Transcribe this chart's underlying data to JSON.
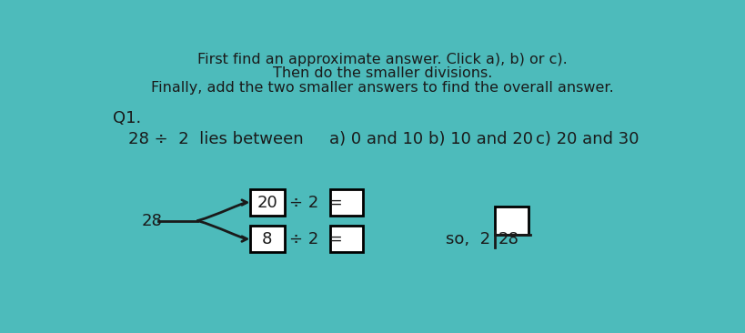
{
  "bg_color": "#4DBBBB",
  "text_color": "#1a1a1a",
  "title_lines": [
    "First find an approximate answer. Click a), b) or c).",
    "Then do the smaller divisions.",
    "Finally, add the two smaller answers to find the overall answer."
  ],
  "q1_label": "Q1.",
  "line1": "28 ÷  2  lies between",
  "option_a": "a) 0 and 10",
  "option_b": "b) 10 and 20",
  "option_c": "c) 20 and 30",
  "num28": "28",
  "num20": "20",
  "num8": "8",
  "div2_top": "÷ 2  =",
  "div2_bot": "÷ 2  =",
  "so_text": "so,  2",
  "longdiv_num": "28"
}
